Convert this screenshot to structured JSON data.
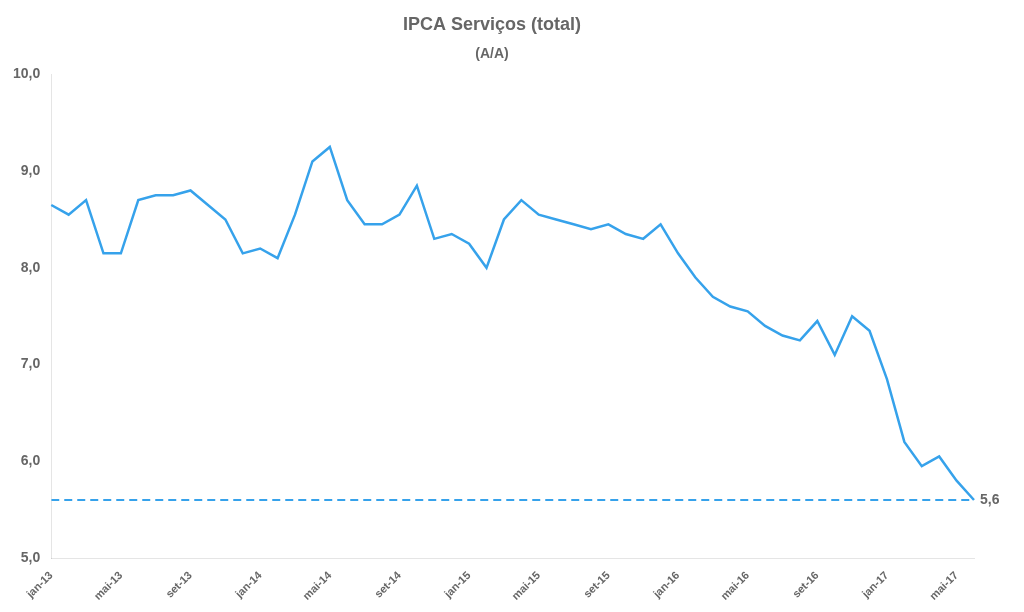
{
  "chart_data": {
    "type": "line",
    "title": "IPCA Serviços (total)",
    "subtitle": "(A/A)",
    "categories": [
      "jan-13",
      null,
      null,
      null,
      "mai-13",
      null,
      null,
      null,
      "set-13",
      null,
      null,
      null,
      "jan-14",
      null,
      null,
      null,
      "mai-14",
      null,
      null,
      null,
      "set-14",
      null,
      null,
      null,
      "jan-15",
      null,
      null,
      null,
      "mai-15",
      null,
      null,
      null,
      "set-15",
      null,
      null,
      null,
      "jan-16",
      null,
      null,
      null,
      "mai-16",
      null,
      null,
      null,
      "set-16",
      null,
      null,
      null,
      "jan-17",
      null,
      null,
      null,
      "mai-17",
      null
    ],
    "values": [
      8.65,
      8.55,
      8.7,
      8.15,
      8.15,
      8.7,
      8.75,
      8.75,
      8.8,
      8.65,
      8.5,
      8.15,
      8.2,
      8.1,
      8.55,
      9.1,
      9.25,
      8.7,
      8.45,
      8.45,
      8.55,
      8.85,
      8.3,
      8.35,
      8.25,
      8.0,
      8.5,
      8.7,
      8.55,
      8.5,
      8.45,
      8.4,
      8.45,
      8.35,
      8.3,
      8.45,
      8.15,
      7.9,
      7.7,
      7.6,
      7.55,
      7.4,
      7.3,
      7.25,
      7.45,
      7.1,
      7.5,
      7.35,
      6.85,
      6.2,
      5.95,
      6.05,
      5.8,
      5.6
    ],
    "ylim": [
      5.0,
      10.0
    ],
    "yticks": [
      {
        "value": 5.0,
        "label": "5,0"
      },
      {
        "value": 6.0,
        "label": "6,0"
      },
      {
        "value": 7.0,
        "label": "7,0"
      },
      {
        "value": 8.0,
        "label": "8,0"
      },
      {
        "value": 9.0,
        "label": "9,0"
      },
      {
        "value": 10.0,
        "label": "10,0"
      }
    ],
    "annotations": [
      {
        "y": 5.6,
        "label": "5,6",
        "line_style": "dashed"
      }
    ],
    "grid": false
  }
}
